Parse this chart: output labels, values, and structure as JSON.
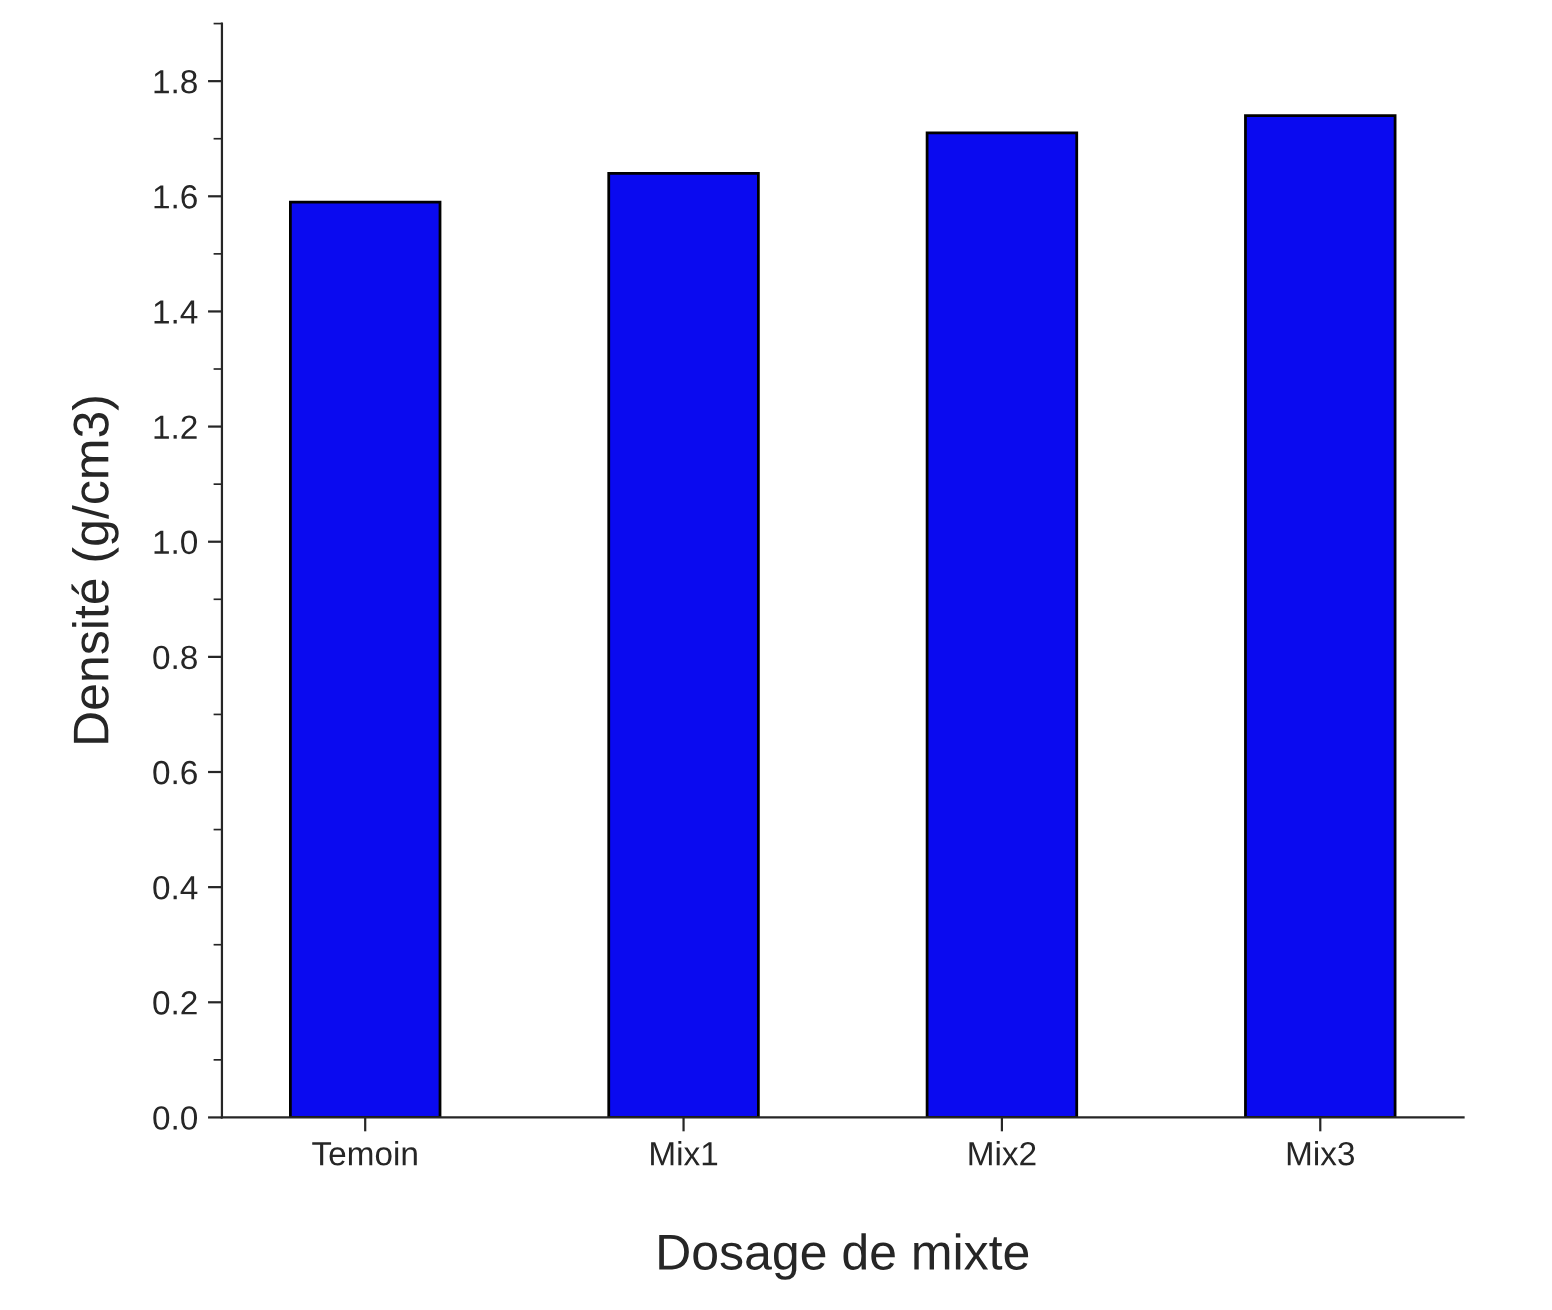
{
  "chart_data": {
    "type": "bar",
    "xlabel": "Dosage de mixte",
    "ylabel": "Densité (g/cm3)",
    "categories": [
      "Temoin",
      "Mix1",
      "Mix2",
      "Mix3"
    ],
    "values": [
      1.59,
      1.64,
      1.71,
      1.74
    ],
    "color": "#0a0af0",
    "ylim": [
      0,
      1.9
    ],
    "yticks": [
      {
        "value": 0,
        "label": "0.0"
      },
      0.2,
      0.4,
      0.6,
      0.8,
      {
        "value": 1,
        "label": "1.0"
      },
      1.2,
      1.4,
      1.6,
      1.8
    ],
    "grid": false,
    "legend": false
  }
}
